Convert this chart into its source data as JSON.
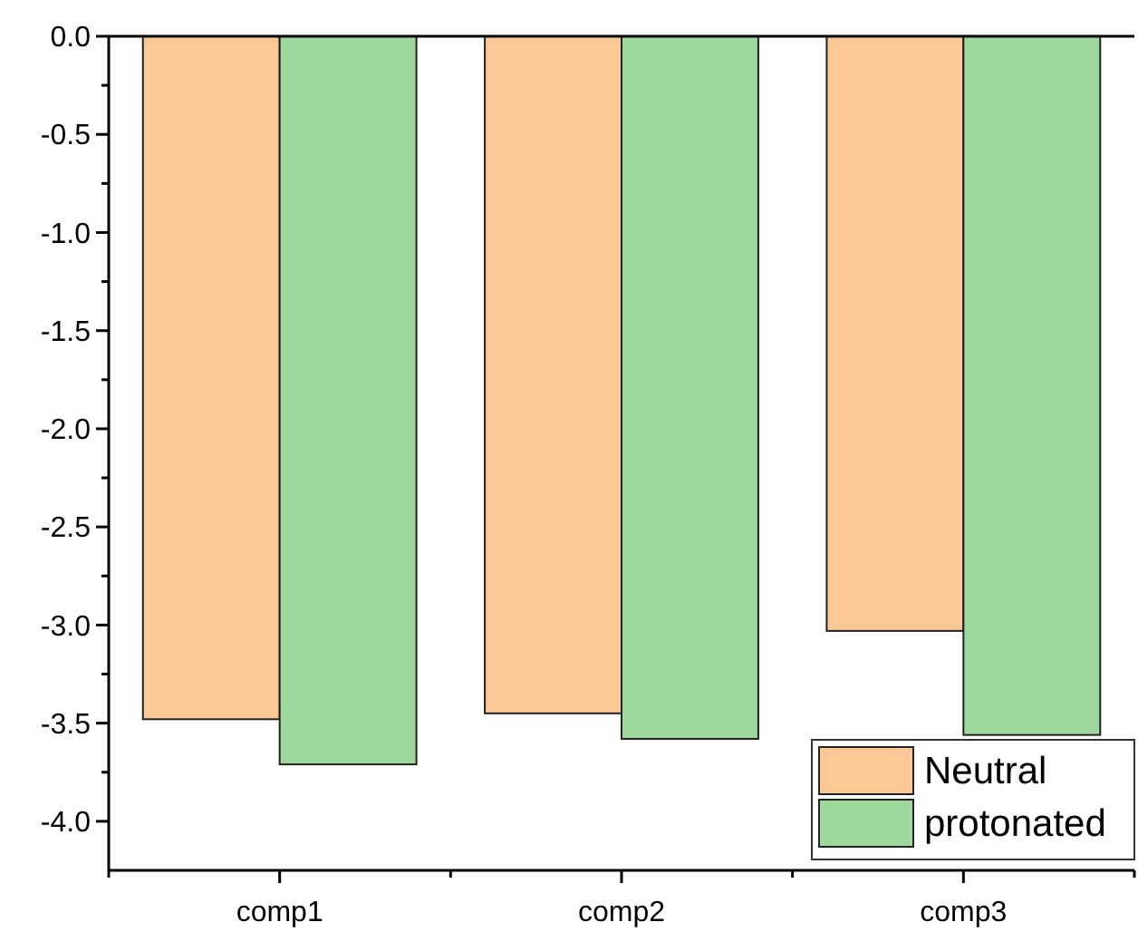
{
  "chart_data": {
    "type": "bar",
    "categories": [
      "comp1",
      "comp2",
      "comp3"
    ],
    "series": [
      {
        "name": "Neutral",
        "color": "#fbc896",
        "values": [
          -3.48,
          -3.45,
          -3.03
        ]
      },
      {
        "name": "protonated",
        "color": "#9ed89c",
        "values": [
          -3.71,
          -3.58,
          -3.56
        ]
      }
    ],
    "ylim": [
      -4.25,
      0
    ],
    "yticks": [
      {
        "value": 0,
        "label": "0.0"
      },
      {
        "value": -0.25,
        "label": null
      },
      {
        "value": -0.5,
        "label": "-0.5"
      },
      {
        "value": -0.75,
        "label": null
      },
      {
        "value": -1,
        "label": "-1.0"
      },
      {
        "value": -1.25,
        "label": null
      },
      {
        "value": -1.5,
        "label": "-1.5"
      },
      {
        "value": -1.75,
        "label": null
      },
      {
        "value": -2,
        "label": "-2.0"
      },
      {
        "value": -2.25,
        "label": null
      },
      {
        "value": -2.5,
        "label": "-2.5"
      },
      {
        "value": -2.75,
        "label": null
      },
      {
        "value": -3,
        "label": "-3.0"
      },
      {
        "value": -3.25,
        "label": null
      },
      {
        "value": -3.5,
        "label": "-3.5"
      },
      {
        "value": -3.75,
        "label": null
      },
      {
        "value": -4,
        "label": "-4.0"
      }
    ],
    "grid": false,
    "legend": "bottom right"
  }
}
